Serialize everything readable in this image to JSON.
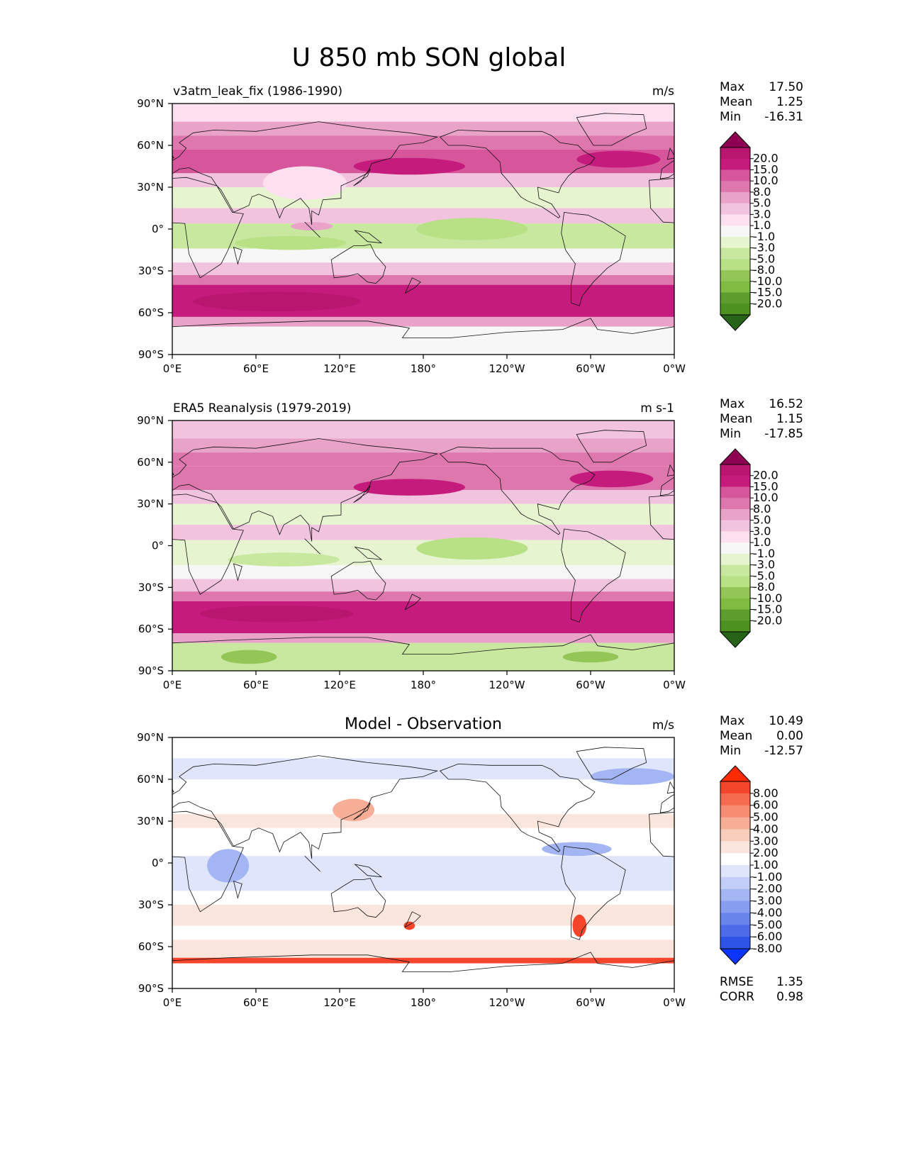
{
  "figure": {
    "title": "U 850 mb SON global"
  },
  "chart_data": [
    {
      "type": "heatmap",
      "panel": "test",
      "title_left": "v3atm_leak_fix (1986-1990)",
      "title_center": "",
      "units": "m/s",
      "stats": {
        "max_label": "Max",
        "max": "17.50",
        "mean_label": "Mean",
        "mean": "1.25",
        "min_label": "Min",
        "min": "-16.31"
      },
      "x_ticks": [
        "0°E",
        "60°E",
        "120°E",
        "180°",
        "120°W",
        "60°W",
        "0°W"
      ],
      "y_ticks": [
        "90°N",
        "60°N",
        "30°N",
        "0°",
        "30°S",
        "60°S",
        "90°S"
      ],
      "x_range": [
        0,
        360
      ],
      "y_range": [
        -90,
        90
      ],
      "colorbar_labels": [
        "20.0",
        "15.0",
        "10.0",
        "8.0",
        "5.0",
        "3.0",
        "1.0",
        "-1.0",
        "-3.0",
        "-5.0",
        "-8.0",
        "-10.0",
        "-15.0",
        "-20.0"
      ],
      "colorbar_colors": [
        "#8e0152",
        "#b8166f",
        "#c51b7d",
        "#d6559b",
        "#de77ae",
        "#e9a3c9",
        "#f1c3de",
        "#fde0ef",
        "#f7f7f7",
        "#e6f5d0",
        "#c9e89f",
        "#b8e186",
        "#93c656",
        "#7fbc41",
        "#5d9c2d",
        "#4d9221",
        "#276419"
      ],
      "bands": [
        {
          "lat": [
            90,
            77
          ],
          "value": 0
        },
        {
          "lat": [
            77,
            67
          ],
          "value": 3
        },
        {
          "lat": [
            67,
            57
          ],
          "value": 5
        },
        {
          "lat": [
            57,
            40
          ],
          "value": 8
        },
        {
          "lat": [
            40,
            30
          ],
          "value": 2
        },
        {
          "lat": [
            30,
            15
          ],
          "value": -5
        },
        {
          "lat": [
            15,
            4
          ],
          "value": 1
        },
        {
          "lat": [
            4,
            -14
          ],
          "value": -6
        },
        {
          "lat": [
            -14,
            -24
          ],
          "value": -2
        },
        {
          "lat": [
            -24,
            -33
          ],
          "value": 2
        },
        {
          "lat": [
            -33,
            -40
          ],
          "value": 7
        },
        {
          "lat": [
            -40,
            -63
          ],
          "value": 12
        },
        {
          "lat": [
            -63,
            -70
          ],
          "value": 4
        },
        {
          "lat": [
            -70,
            -90
          ],
          "value": -2
        }
      ],
      "blobs": [
        {
          "lon": 75,
          "lat": -52,
          "rlon": 60,
          "rlat": 7,
          "value": 16
        },
        {
          "lon": 170,
          "lat": 45,
          "rlon": 40,
          "rlat": 6,
          "value": 11
        },
        {
          "lon": 320,
          "lat": 50,
          "rlon": 30,
          "rlat": 6,
          "value": 11
        },
        {
          "lon": 215,
          "lat": 0,
          "rlon": 40,
          "rlat": 8,
          "value": -9
        },
        {
          "lon": 85,
          "lat": -10,
          "rlon": 40,
          "rlat": 5,
          "value": -9
        },
        {
          "lon": 100,
          "lat": 2,
          "rlon": 15,
          "rlat": 3,
          "value": 4
        },
        {
          "lon": 95,
          "lat": 33,
          "rlon": 30,
          "rlat": 12,
          "value": 0
        }
      ]
    },
    {
      "type": "heatmap",
      "panel": "reference",
      "title_left": "ERA5 Reanalysis (1979-2019)",
      "title_center": "",
      "units": "m s-1",
      "stats": {
        "max_label": "Max",
        "max": "16.52",
        "mean_label": "Mean",
        "mean": "1.15",
        "min_label": "Min",
        "min": "-17.85"
      },
      "x_ticks": [
        "0°E",
        "60°E",
        "120°E",
        "180°",
        "120°W",
        "60°W",
        "0°W"
      ],
      "y_ticks": [
        "90°N",
        "60°N",
        "30°N",
        "0°",
        "30°S",
        "60°S",
        "90°S"
      ],
      "x_range": [
        0,
        360
      ],
      "y_range": [
        -90,
        90
      ],
      "colorbar_labels": [
        "20.0",
        "15.0",
        "10.0",
        "8.0",
        "5.0",
        "3.0",
        "1.0",
        "-1.0",
        "-3.0",
        "-5.0",
        "-8.0",
        "-10.0",
        "-15.0",
        "-20.0"
      ],
      "colorbar_colors": [
        "#8e0152",
        "#b8166f",
        "#c51b7d",
        "#d6559b",
        "#de77ae",
        "#e9a3c9",
        "#f1c3de",
        "#fde0ef",
        "#f7f7f7",
        "#e6f5d0",
        "#c9e89f",
        "#b8e186",
        "#93c656",
        "#7fbc41",
        "#5d9c2d",
        "#4d9221",
        "#276419"
      ],
      "bands": [
        {
          "lat": [
            90,
            77
          ],
          "value": 1
        },
        {
          "lat": [
            77,
            67
          ],
          "value": 3
        },
        {
          "lat": [
            67,
            57
          ],
          "value": 5
        },
        {
          "lat": [
            57,
            40
          ],
          "value": 7
        },
        {
          "lat": [
            40,
            30
          ],
          "value": 2
        },
        {
          "lat": [
            30,
            15
          ],
          "value": -5
        },
        {
          "lat": [
            15,
            4
          ],
          "value": 1
        },
        {
          "lat": [
            4,
            -14
          ],
          "value": -5
        },
        {
          "lat": [
            -14,
            -24
          ],
          "value": -2
        },
        {
          "lat": [
            -24,
            -33
          ],
          "value": 2
        },
        {
          "lat": [
            -33,
            -40
          ],
          "value": 7
        },
        {
          "lat": [
            -40,
            -63
          ],
          "value": 12
        },
        {
          "lat": [
            -63,
            -70
          ],
          "value": 3
        },
        {
          "lat": [
            -70,
            -90
          ],
          "value": -6
        }
      ],
      "blobs": [
        {
          "lon": 75,
          "lat": -49,
          "rlon": 55,
          "rlat": 6,
          "value": 16
        },
        {
          "lon": 170,
          "lat": 42,
          "rlon": 40,
          "rlat": 6,
          "value": 10
        },
        {
          "lon": 315,
          "lat": 48,
          "rlon": 30,
          "rlat": 6,
          "value": 10
        },
        {
          "lon": 215,
          "lat": -2,
          "rlon": 40,
          "rlat": 8,
          "value": -9
        },
        {
          "lon": 80,
          "lat": -10,
          "rlon": 40,
          "rlat": 5,
          "value": -7
        },
        {
          "lon": 55,
          "lat": -80,
          "rlon": 20,
          "rlat": 5,
          "value": -12
        },
        {
          "lon": 300,
          "lat": -80,
          "rlon": 20,
          "rlat": 4,
          "value": -12
        }
      ]
    },
    {
      "type": "heatmap",
      "panel": "difference",
      "title_left": "",
      "title_center": "Model - Observation",
      "units": "m/s",
      "stats": {
        "max_label": "Max",
        "max": "10.49",
        "mean_label": "Mean",
        "mean": "0.00",
        "min_label": "Min",
        "min": "-12.57"
      },
      "extra_stats": {
        "rmse_label": "RMSE",
        "rmse": "1.35",
        "corr_label": "CORR",
        "corr": "0.98"
      },
      "x_ticks": [
        "0°E",
        "60°E",
        "120°E",
        "180°",
        "120°W",
        "60°W",
        "0°W"
      ],
      "y_ticks": [
        "90°N",
        "60°N",
        "30°N",
        "0°",
        "30°S",
        "60°S",
        "90°S"
      ],
      "x_range": [
        0,
        360
      ],
      "y_range": [
        -90,
        90
      ],
      "colorbar_labels": [
        "8.00",
        "6.00",
        "5.00",
        "4.00",
        "3.00",
        "2.00",
        "1.00",
        "-1.00",
        "-2.00",
        "-3.00",
        "-4.00",
        "-5.00",
        "-6.00",
        "-8.00"
      ],
      "colorbar_colors": [
        "#ff2a00",
        "#f5462c",
        "#f46b4f",
        "#f58c72",
        "#f7ad96",
        "#f9cdbb",
        "#fbe6de",
        "#ffffff",
        "#dfe6fb",
        "#c2cef7",
        "#a4b5f3",
        "#879df0",
        "#6985ec",
        "#4c6ce9",
        "#2e54e5",
        "#0a34ff"
      ],
      "bands": [
        {
          "lat": [
            90,
            75
          ],
          "value": 0
        },
        {
          "lat": [
            75,
            60
          ],
          "value": -1.5
        },
        {
          "lat": [
            60,
            35
          ],
          "value": 0
        },
        {
          "lat": [
            35,
            25
          ],
          "value": 1.5
        },
        {
          "lat": [
            25,
            5
          ],
          "value": 0
        },
        {
          "lat": [
            5,
            -20
          ],
          "value": -1.5
        },
        {
          "lat": [
            -20,
            -30
          ],
          "value": 0
        },
        {
          "lat": [
            -30,
            -45
          ],
          "value": 1.5
        },
        {
          "lat": [
            -45,
            -55
          ],
          "value": 0
        },
        {
          "lat": [
            -55,
            -68
          ],
          "value": 1.5
        },
        {
          "lat": [
            -68,
            -72
          ],
          "value": 6
        },
        {
          "lat": [
            -72,
            -90
          ],
          "value": 0
        }
      ],
      "blobs": [
        {
          "lon": 330,
          "lat": 62,
          "rlon": 30,
          "rlat": 6,
          "value": -3.5
        },
        {
          "lon": 290,
          "lat": 10,
          "rlon": 25,
          "rlat": 5,
          "value": -3.5
        },
        {
          "lon": 292,
          "lat": -45,
          "rlon": 5,
          "rlat": 8,
          "value": 7
        },
        {
          "lon": 170,
          "lat": -45,
          "rlon": 4,
          "rlat": 3,
          "value": 7
        },
        {
          "lon": 130,
          "lat": 38,
          "rlon": 15,
          "rlat": 8,
          "value": 3.5
        },
        {
          "lon": 40,
          "lat": -2,
          "rlon": 15,
          "rlat": 12,
          "value": -3.5
        }
      ]
    }
  ]
}
